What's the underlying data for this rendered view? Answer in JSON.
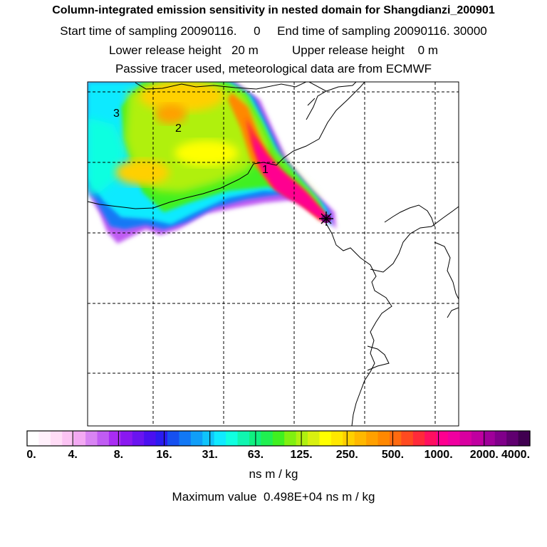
{
  "header": {
    "title": "Column-integrated emission sensitivity in nested domain for Shangdianzi_200901",
    "sampling_line": "Start time of sampling 20090116.     0     End time of sampling 20090116. 30000",
    "release_line": "Lower release height   20 m          Upper release height    0 m",
    "tracer_line": "Passive tracer used, meteorological data are from ECMWF"
  },
  "chart_data": {
    "type": "heatmap",
    "title": "Column-integrated emission sensitivity in nested domain for Shangdianzi_200901",
    "colorbar": {
      "labels": [
        "0.",
        "4.",
        "8.",
        "16.",
        "31.",
        "63.",
        "125.",
        "250.",
        "500.",
        "1000.",
        "2000.",
        "4000."
      ],
      "units": "ns m / kg",
      "colors": [
        "#ffffff",
        "#fff0fb",
        "#ffdcf6",
        "#fbc3f3",
        "#f3a9f3",
        "#d884f3",
        "#c05cf3",
        "#a92cf3",
        "#8a18f0",
        "#6a14f0",
        "#4a10f0",
        "#2a1cf0",
        "#1650f0",
        "#1278f5",
        "#109ef8",
        "#10c4fb",
        "#10eaff",
        "#10ffe0",
        "#10f5b0",
        "#10f080",
        "#20f050",
        "#40f020",
        "#80f010",
        "#b0f010",
        "#d8f010",
        "#ffff00",
        "#ffe800",
        "#ffd000",
        "#ffb800",
        "#ffa000",
        "#ff8800",
        "#ff6a10",
        "#ff4a20",
        "#ff2a3a",
        "#ff1060",
        "#ff0090",
        "#f000a0",
        "#d800a0",
        "#c000a0",
        "#a0009a",
        "#80008a",
        "#600070",
        "#400050"
      ]
    },
    "maximum_line": "Maximum value  0.498E+04 ns m / kg",
    "contour_labels": [
      "1",
      "2",
      "3"
    ],
    "receptor": "Shangdianzi"
  }
}
